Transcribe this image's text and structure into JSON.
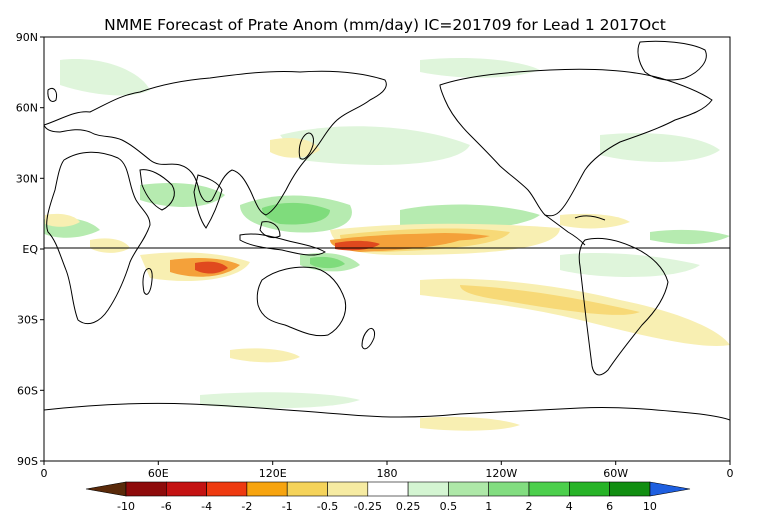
{
  "title": "NMME Forecast of Prate Anom (mm/day) IC=201709 for Lead 1 2017Oct",
  "map": {
    "lat_labels": [
      "90N",
      "60N",
      "30N",
      "EQ",
      "30S",
      "60S",
      "90S"
    ],
    "lon_labels": [
      "0",
      "60E",
      "120E",
      "180",
      "120W",
      "60W",
      "0"
    ],
    "equator_line": true
  },
  "colorbar": {
    "labels": [
      "-10",
      "-6",
      "-4",
      "-2",
      "-1",
      "-0.5",
      "-0.25",
      "0.25",
      "0.5",
      "1",
      "2",
      "4",
      "6",
      "10"
    ],
    "left_arrow_color": "#5a2a0a",
    "right_arrow_color": "#1e5fe0",
    "colors": [
      "#8e0b0b",
      "#c41212",
      "#ee3a10",
      "#f7a40f",
      "#f5d35a",
      "#f6eba2",
      "#ffffff",
      "#d4f5d2",
      "#aee8a8",
      "#82dd80",
      "#4ccf4c",
      "#27b327",
      "#118e11"
    ]
  },
  "anomaly_colors": {
    "dry_strong": "#e0491e",
    "dry_moderate": "#f4a13a",
    "dry_light": "#f7d977",
    "dry_faint": "#f8efb2",
    "wet_faint": "#dff5db",
    "wet_light": "#b6ebb0",
    "wet_moderate": "#7fdc7c",
    "wet_strong": "#4fcf52"
  }
}
